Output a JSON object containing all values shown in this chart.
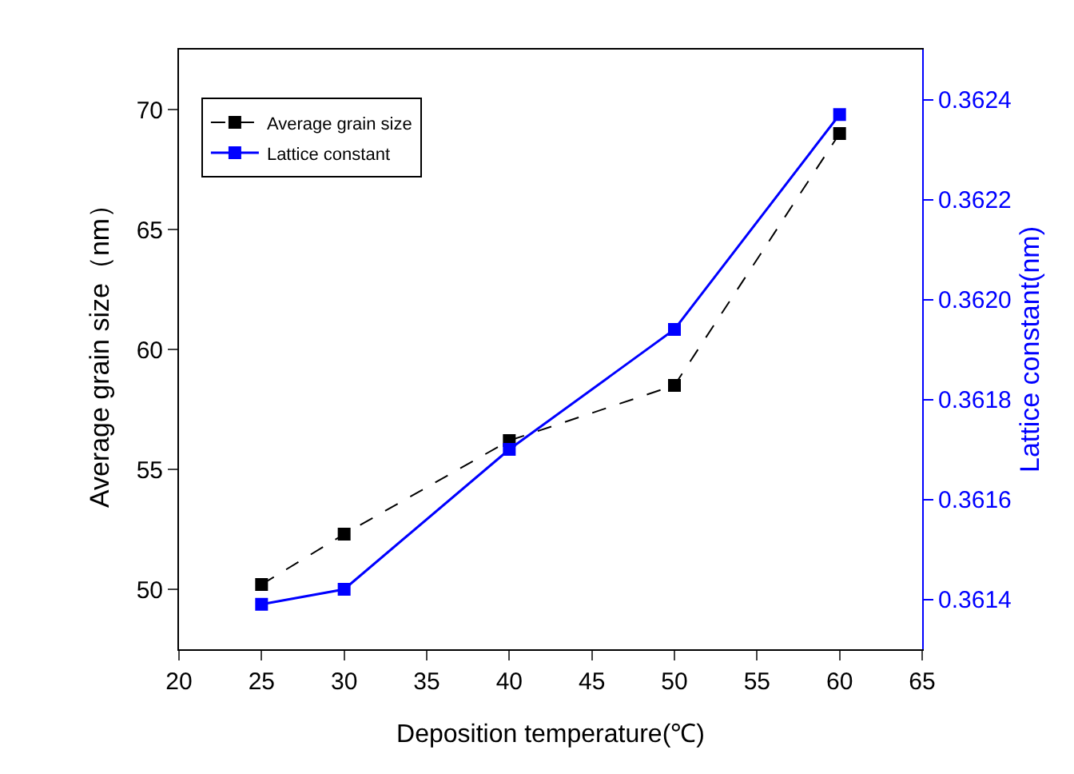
{
  "chart_data": {
    "type": "line",
    "xlabel": "Deposition temperature(℃)",
    "ylabel": "Average grain size（nm）",
    "y2label": "Lattice constant(nm)",
    "x": [
      25,
      30,
      40,
      50,
      60
    ],
    "series": [
      {
        "name": "Average grain size",
        "color": "#000000",
        "line_style": "dashed",
        "values": [
          50.2,
          52.3,
          56.2,
          58.5,
          69.0
        ]
      },
      {
        "name": "Lattice constant",
        "color": "#0000ff",
        "line_style": "solid",
        "axis": "y2",
        "values": [
          0.36139,
          0.36142,
          0.3617,
          0.36194,
          0.36237
        ]
      }
    ],
    "xlim": [
      20,
      65
    ],
    "xticks": [
      20,
      25,
      30,
      35,
      40,
      45,
      50,
      55,
      60,
      65
    ],
    "ylim": [
      47.5,
      72.5
    ],
    "yticks": [
      50,
      55,
      60,
      65,
      70
    ],
    "y2lim": [
      0.3613,
      0.3625
    ],
    "y2ticks": [
      0.3614,
      0.3616,
      0.3618,
      {
        "value": 0.362,
        "label": "0.3620"
      },
      0.3622,
      0.3624
    ],
    "marker": "square",
    "legend": "top left",
    "grid": false
  }
}
